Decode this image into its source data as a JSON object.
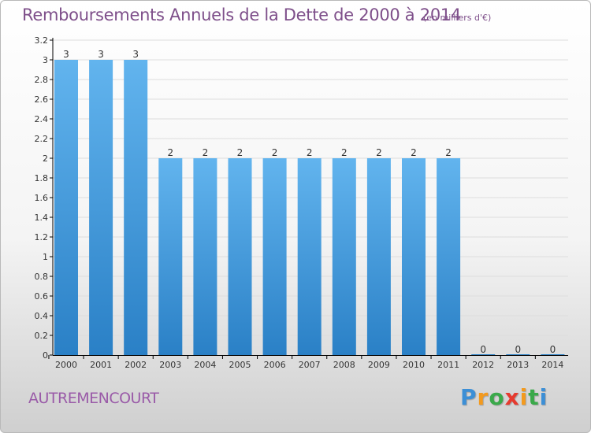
{
  "title": "Remboursements Annuels de la Dette de 2000 à 2014",
  "unit": "(en milliers d'€)",
  "commune": "AUTREMENCOURT",
  "logo": {
    "letters": [
      "P",
      "r",
      "o",
      "x",
      "i",
      "t",
      "i"
    ],
    "colors": [
      "#3c8fd6",
      "#f39a1e",
      "#3aa94a",
      "#e63a2e",
      "#f39a1e",
      "#3aa94a",
      "#3c8fd6"
    ]
  },
  "colors": {
    "bar_light": "#62b4ee",
    "bar_dark": "#2a80c6",
    "axis": "#000000",
    "grid": "#dddddd"
  },
  "chart_data": {
    "type": "bar",
    "categories": [
      "2000",
      "2001",
      "2002",
      "2003",
      "2004",
      "2005",
      "2006",
      "2007",
      "2008",
      "2009",
      "2010",
      "2011",
      "2012",
      "2013",
      "2014"
    ],
    "values": [
      3,
      3,
      3,
      2,
      2,
      2,
      2,
      2,
      2,
      2,
      2,
      2,
      0,
      0,
      0
    ],
    "data_labels": [
      "3",
      "3",
      "3",
      "2",
      "2",
      "2",
      "2",
      "2",
      "2",
      "2",
      "2",
      "2",
      "0",
      "0",
      "0"
    ],
    "ylim": [
      0,
      3.2
    ],
    "yticks": [
      0,
      0.2,
      0.4,
      0.6,
      0.8,
      1,
      1.2,
      1.4,
      1.6,
      1.8,
      2,
      2.2,
      2.4,
      2.6,
      2.8,
      3,
      3.2
    ],
    "ytick_labels": [
      "0",
      "0.2",
      "0.4",
      "0.6",
      "0.8",
      "1",
      "1.2",
      "1.4",
      "1.6",
      "1.8",
      "2",
      "2.2",
      "2.4",
      "2.6",
      "2.8",
      "3",
      "3.2"
    ],
    "grid": true,
    "legend": "none"
  }
}
